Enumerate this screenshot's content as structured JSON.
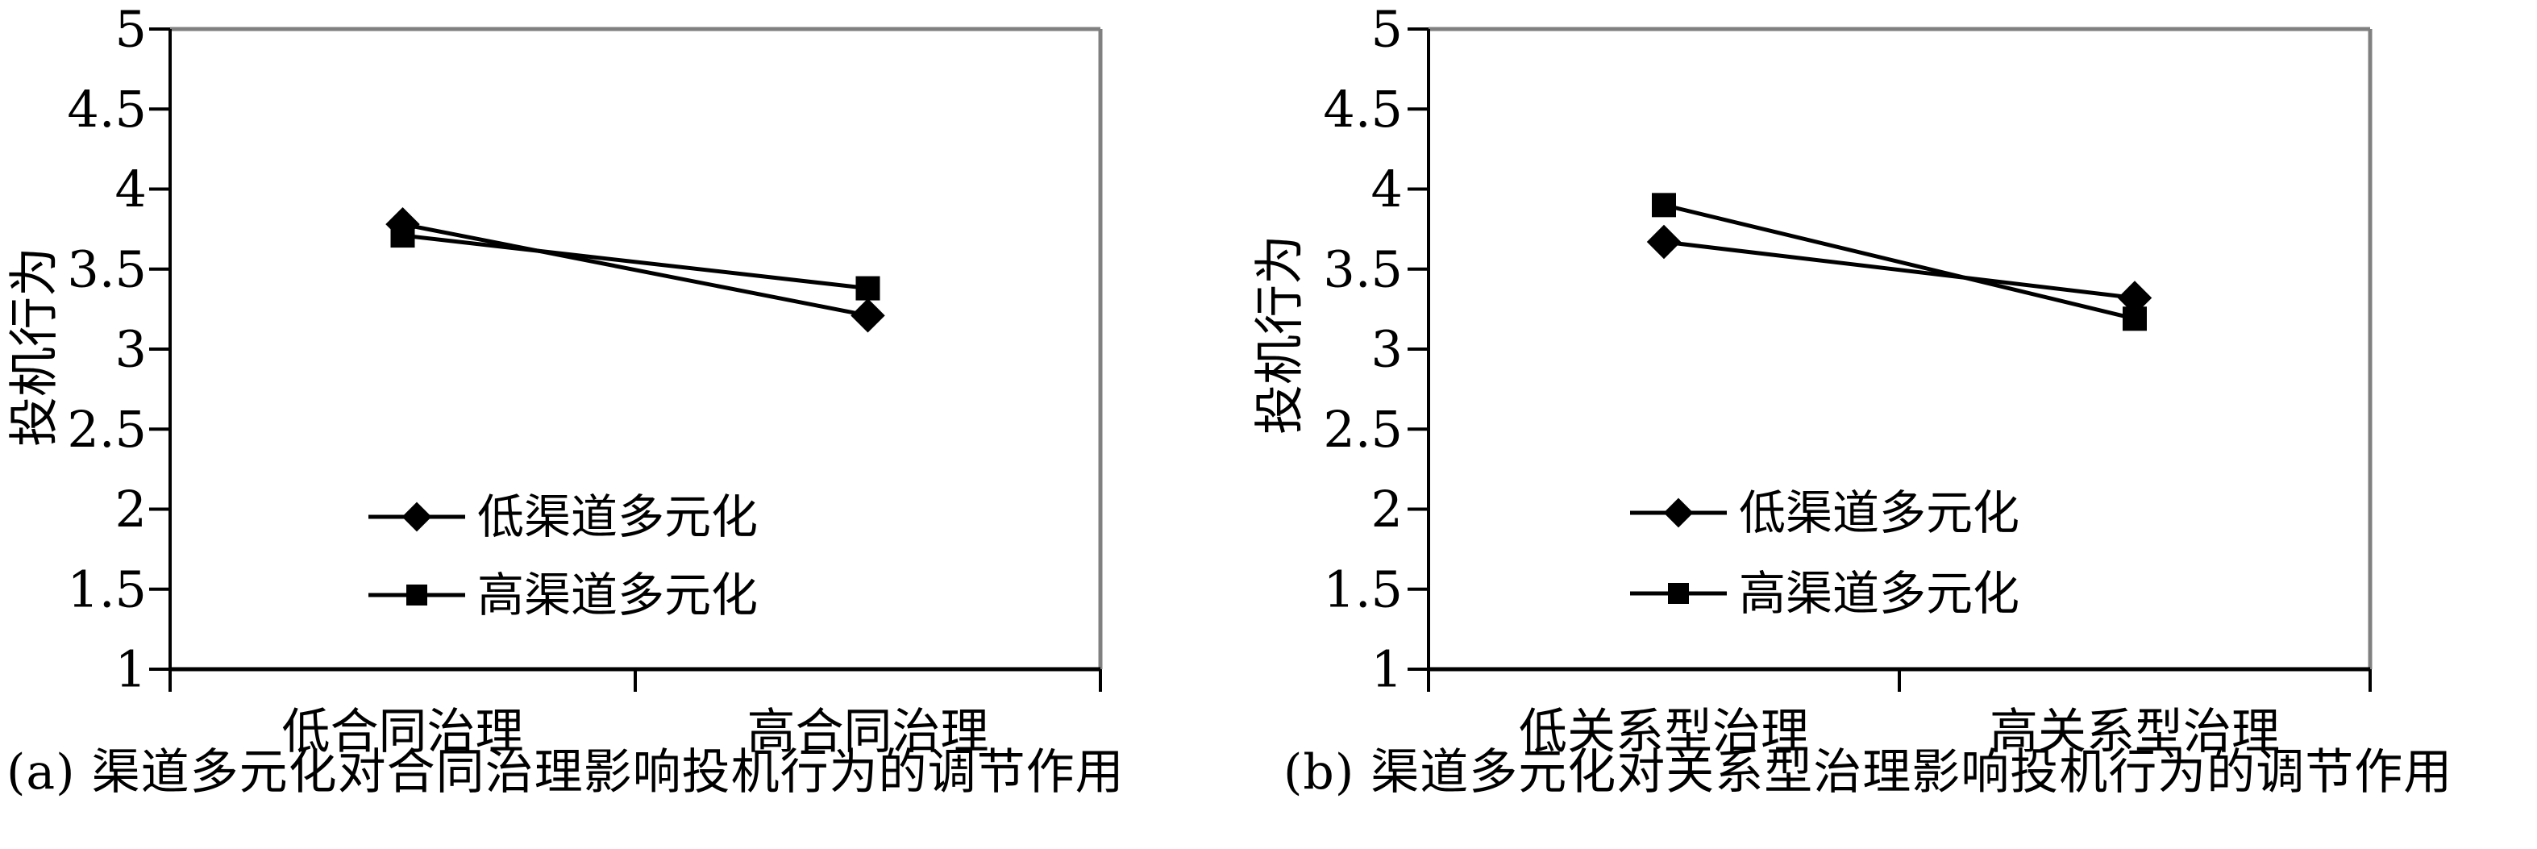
{
  "style": {
    "background": "#ffffff",
    "line_color": "#000000",
    "plot_border_gray": "#808080"
  },
  "chart_data": [
    {
      "type": "line",
      "id": "a",
      "title": "(a) 渠道多元化对合同治理影响投机行为的调节作用",
      "ylabel": "投机行为",
      "xlabel": "",
      "ylim": [
        1,
        5
      ],
      "ytick_step": 0.5,
      "grid": false,
      "legend_position": "inside-bottom-center",
      "y_ticks": [
        {
          "value": 5,
          "label": "5"
        },
        {
          "value": 4.5,
          "label": "4.5"
        },
        {
          "value": 4,
          "label": "4"
        },
        {
          "value": 3.5,
          "label": "3.5"
        },
        {
          "value": 3,
          "label": "3"
        },
        {
          "value": 2.5,
          "label": "2.5"
        },
        {
          "value": 2,
          "label": "2"
        },
        {
          "value": 1.5,
          "label": "1.5"
        },
        {
          "value": 1,
          "label": "1"
        }
      ],
      "categories": [
        "低合同治理",
        "高合同治理"
      ],
      "series": [
        {
          "name": "低渠道多元化",
          "marker": "diamond",
          "values": [
            3.78,
            3.21
          ]
        },
        {
          "name": "高渠道多元化",
          "marker": "square",
          "values": [
            3.71,
            3.38
          ]
        }
      ]
    },
    {
      "type": "line",
      "id": "b",
      "title": "(b) 渠道多元化对关系型治理影响投机行为的调节作用",
      "ylabel": "投机行为",
      "xlabel": "",
      "ylim": [
        1,
        5
      ],
      "ytick_step": 0.5,
      "grid": false,
      "legend_position": "inside-bottom-center",
      "y_ticks": [
        {
          "value": 5,
          "label": "5"
        },
        {
          "value": 4.5,
          "label": "4.5"
        },
        {
          "value": 4,
          "label": "4"
        },
        {
          "value": 3.5,
          "label": "3.5"
        },
        {
          "value": 3,
          "label": "3"
        },
        {
          "value": 2.5,
          "label": "2.5"
        },
        {
          "value": 2,
          "label": "2"
        },
        {
          "value": 1.5,
          "label": "1.5"
        },
        {
          "value": 1,
          "label": "1"
        }
      ],
      "categories": [
        "低关系型治理",
        "高关系型治理"
      ],
      "series": [
        {
          "name": "低渠道多元化",
          "marker": "diamond",
          "values": [
            3.67,
            3.32
          ]
        },
        {
          "name": "高渠道多元化",
          "marker": "square",
          "values": [
            3.9,
            3.19
          ]
        }
      ]
    }
  ]
}
